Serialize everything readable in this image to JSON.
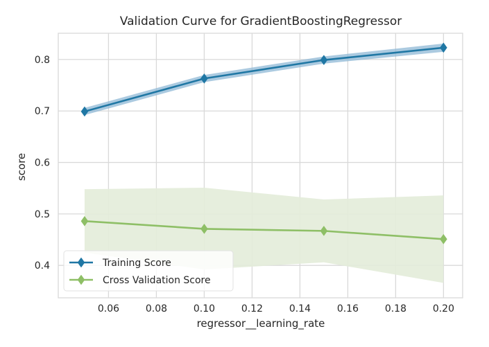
{
  "chart_data": {
    "type": "line",
    "title": "Validation Curve for GradientBoostingRegressor",
    "xlabel": "regressor__learning_rate",
    "ylabel": "score",
    "xlim": [
      0.039,
      0.208
    ],
    "ylim": [
      0.337,
      0.851
    ],
    "x_ticks": [
      0.06,
      0.08,
      0.1,
      0.12,
      0.14,
      0.16,
      0.18,
      0.2
    ],
    "x_tick_labels": [
      "0.06",
      "0.08",
      "0.10",
      "0.12",
      "0.14",
      "0.16",
      "0.18",
      "0.20"
    ],
    "y_ticks": [
      0.4,
      0.5,
      0.6,
      0.7,
      0.8
    ],
    "y_tick_labels": [
      "0.4",
      "0.5",
      "0.6",
      "0.7",
      "0.8"
    ],
    "grid": true,
    "legend_position": "bottom-left",
    "x": [
      0.05,
      0.1,
      0.15,
      0.2
    ],
    "series": [
      {
        "name": "Training Score",
        "color": "#1f77a4",
        "band_color": "#8fb8d5",
        "marker": "diamond",
        "values": [
          0.699,
          0.763,
          0.799,
          0.823
        ],
        "band_lower": [
          0.692,
          0.756,
          0.792,
          0.815
        ],
        "band_upper": [
          0.706,
          0.77,
          0.806,
          0.831
        ]
      },
      {
        "name": "Cross Validation Score",
        "color": "#8ebf66",
        "band_color": "#e3ecd9",
        "marker": "diamond",
        "values": [
          0.486,
          0.471,
          0.467,
          0.451
        ],
        "band_lower": [
          0.425,
          0.392,
          0.406,
          0.366
        ],
        "band_upper": [
          0.548,
          0.551,
          0.528,
          0.536
        ]
      }
    ]
  }
}
